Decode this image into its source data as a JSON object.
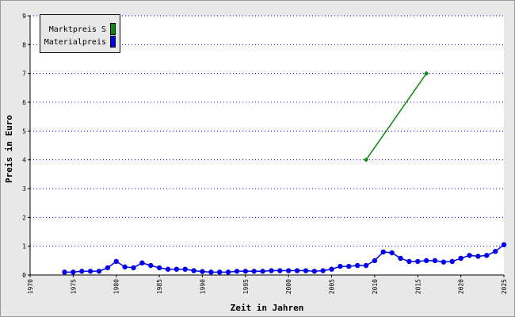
{
  "chart_data": {
    "type": "line",
    "xlabel": "Zeit in Jahren",
    "ylabel": "Preis in Euro",
    "xlim": [
      1970,
      2025
    ],
    "xticks": [
      1970,
      1975,
      1980,
      1985,
      1990,
      1995,
      2000,
      2005,
      2010,
      2015,
      2020,
      2025
    ],
    "ylim": [
      0,
      9
    ],
    "yticks": [
      0,
      1,
      2,
      3,
      4,
      5,
      6,
      7,
      8,
      9
    ],
    "grid": true,
    "legend": "top-left",
    "series": [
      {
        "name": "Marktpreis S",
        "color": "#0b8a0b",
        "x": [
          2009,
          2016
        ],
        "values": [
          4,
          7
        ]
      },
      {
        "name": "Materialpreis",
        "color": "#0000ee",
        "x": [
          1974,
          1975,
          1976,
          1977,
          1978,
          1979,
          1980,
          1981,
          1982,
          1983,
          1984,
          1985,
          1986,
          1987,
          1988,
          1989,
          1990,
          1991,
          1992,
          1993,
          1994,
          1995,
          1996,
          1997,
          1998,
          1999,
          2000,
          2001,
          2002,
          2003,
          2004,
          2005,
          2006,
          2007,
          2008,
          2009,
          2010,
          2011,
          2012,
          2013,
          2014,
          2015,
          2016,
          2017,
          2018,
          2019,
          2020,
          2021,
          2022,
          2023,
          2024,
          2025
        ],
        "values": [
          0.1,
          0.1,
          0.13,
          0.13,
          0.13,
          0.25,
          0.47,
          0.28,
          0.25,
          0.42,
          0.33,
          0.25,
          0.2,
          0.2,
          0.2,
          0.15,
          0.12,
          0.1,
          0.1,
          0.1,
          0.13,
          0.13,
          0.13,
          0.13,
          0.15,
          0.15,
          0.15,
          0.15,
          0.15,
          0.13,
          0.15,
          0.2,
          0.3,
          0.3,
          0.33,
          0.33,
          0.5,
          0.8,
          0.77,
          0.58,
          0.47,
          0.47,
          0.5,
          0.5,
          0.45,
          0.47,
          0.58,
          0.68,
          0.65,
          0.68,
          0.82,
          1.05
        ]
      }
    ]
  }
}
